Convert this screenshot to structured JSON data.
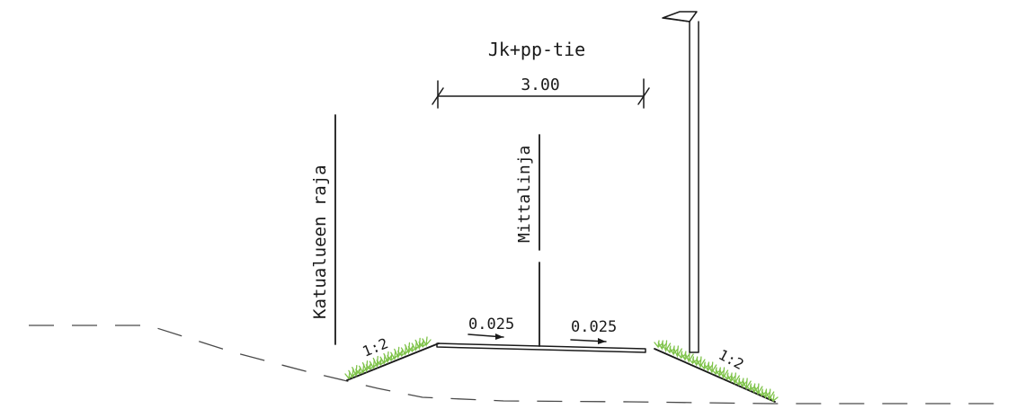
{
  "labels": {
    "path_type": "Jk+pp-tie",
    "width_dimension": "3.00",
    "boundary_line": "Katualueen raja",
    "survey_line": "Mittalinja",
    "slope_left": "0.025",
    "slope_right": "0.025",
    "embankment_left": "1:2",
    "embankment_right": "1:2"
  },
  "colors": {
    "ink": "#1a1a1a",
    "ground_dashed": "#4a4a4a",
    "grass": "#7fc34a",
    "background": "#ffffff"
  },
  "icons": {
    "lamp": "street-lamp-icon",
    "slope_arrow": "arrow-right-icon"
  }
}
